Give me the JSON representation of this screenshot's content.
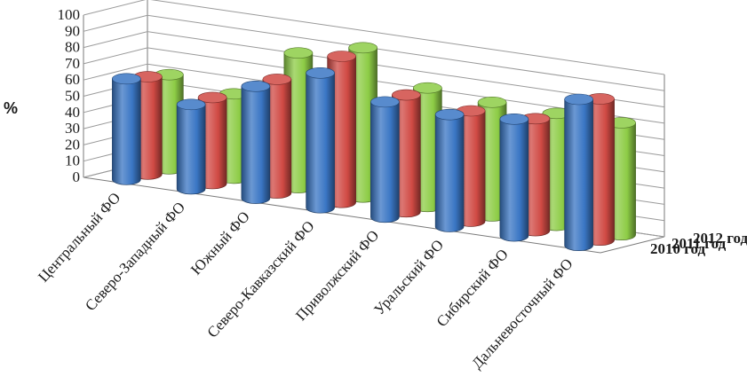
{
  "chart_data": {
    "type": "bar",
    "subtype": "3d-cylinder",
    "ylabel": "%",
    "ylim": [
      0,
      100
    ],
    "yticks": [
      0,
      10,
      20,
      30,
      40,
      50,
      60,
      70,
      80,
      90,
      100
    ],
    "categories": [
      "Центральный ФО",
      "Северо-Западный ФО",
      "Южный ФО",
      "Северо-Кавказский ФО",
      "Приволжский ФО",
      "Уральский ФО",
      "Сибирский ФО",
      "Дальневосточный ФО"
    ],
    "series": [
      {
        "name": "2010 год",
        "color": "#3a76c4",
        "values": [
          62,
          52,
          69,
          83,
          71,
          69,
          72,
          90
        ]
      },
      {
        "name": "2011 год",
        "color": "#d04a44",
        "values": [
          60,
          53,
          70,
          90,
          72,
          68,
          69,
          87
        ]
      },
      {
        "name": "2012 год",
        "color": "#8dcc46",
        "values": [
          58,
          52,
          83,
          92,
          73,
          70,
          69,
          69
        ]
      }
    ],
    "legend_position": "right",
    "grid": true
  }
}
